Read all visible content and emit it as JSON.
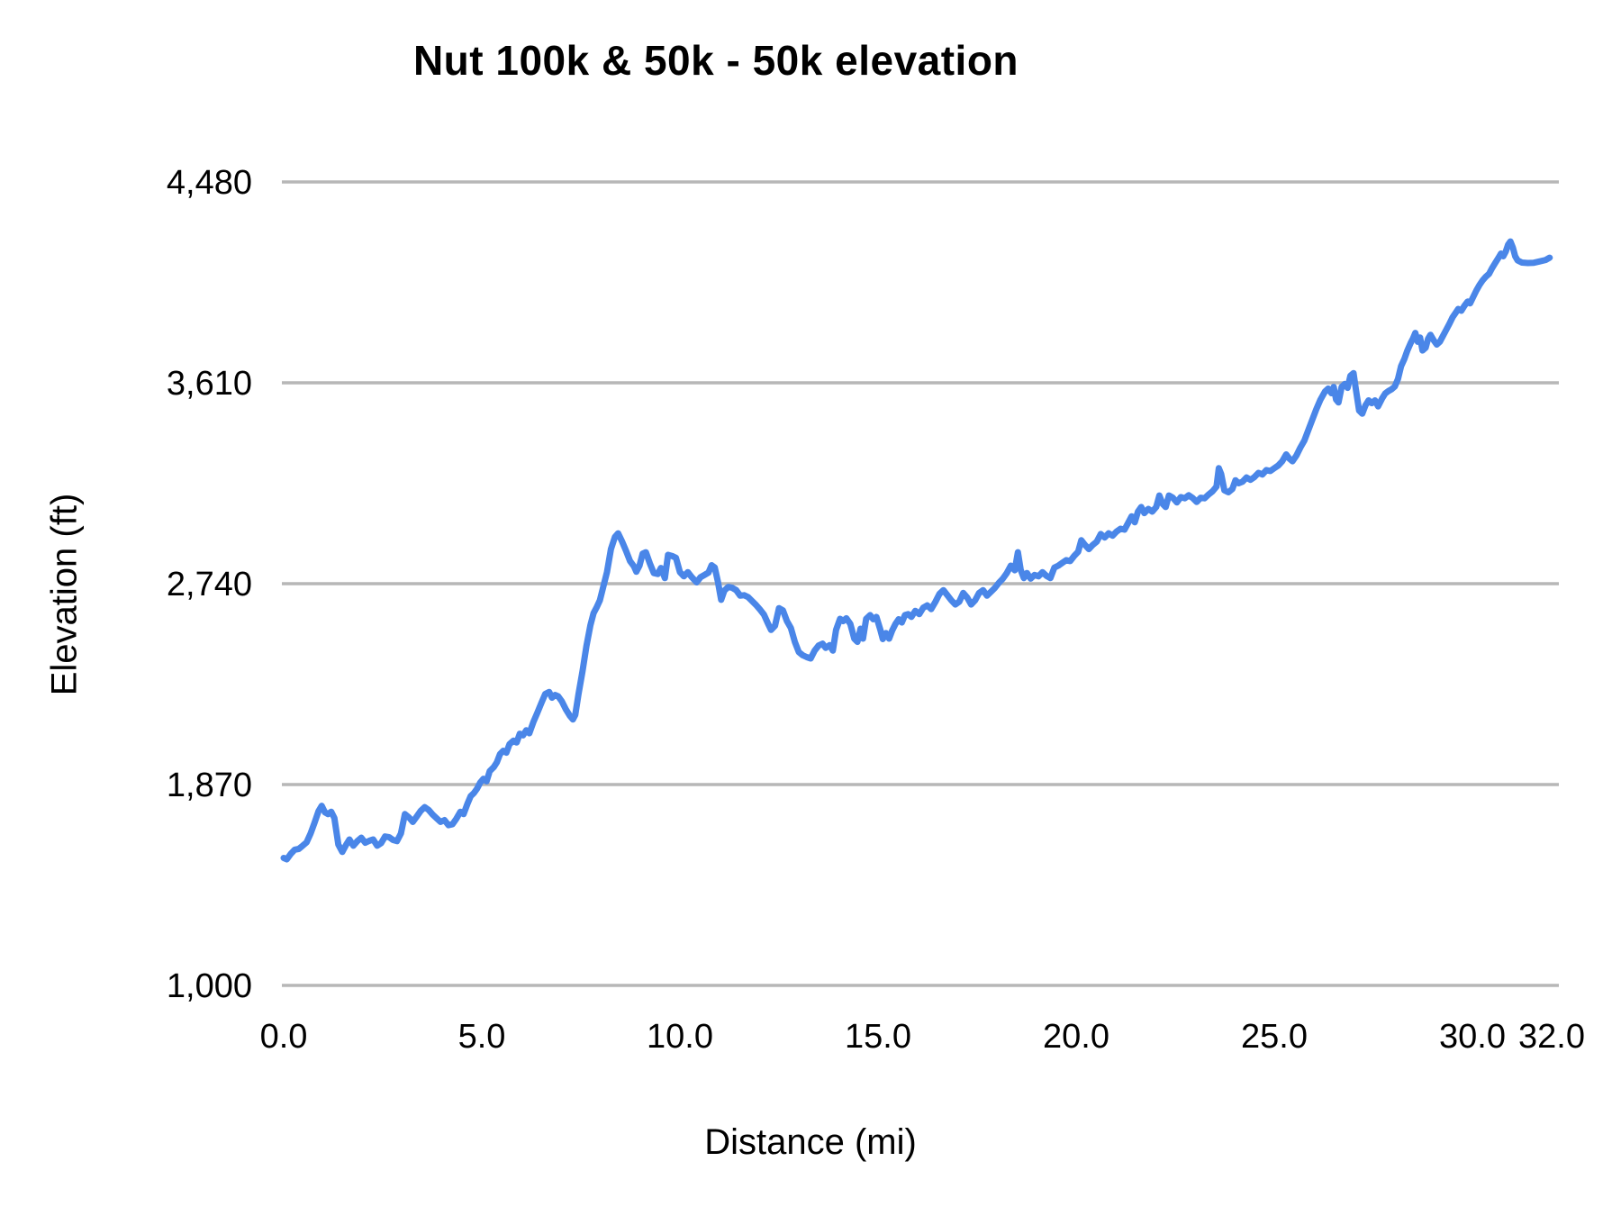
{
  "chart_data": {
    "type": "line",
    "title": "Nut 100k & 50k - 50k elevation",
    "xlabel": "Distance (mi)",
    "ylabel": "Elevation (ft)",
    "series_name": "50k elevation",
    "xlim": [
      0,
      32
    ],
    "ylim": [
      1000,
      4480
    ],
    "grid": "horizontal",
    "legend": "none",
    "line_color": "#4a86e8",
    "gridline_color": "#b7b7b7",
    "text_color": "#000000",
    "background_color": "#ffffff",
    "x_ticks": [
      {
        "v": 0,
        "label": "0.0"
      },
      {
        "v": 5,
        "label": "5.0"
      },
      {
        "v": 10,
        "label": "10.0"
      },
      {
        "v": 15,
        "label": "15.0"
      },
      {
        "v": 20,
        "label": "20.0"
      },
      {
        "v": 25,
        "label": "25.0"
      },
      {
        "v": 30,
        "label": "30.0"
      },
      {
        "v": 32,
        "label": "32.0"
      }
    ],
    "y_ticks": [
      {
        "v": 1000,
        "label": "1,000"
      },
      {
        "v": 1870,
        "label": "1,870"
      },
      {
        "v": 2740,
        "label": "2,740"
      },
      {
        "v": 3610,
        "label": "3,610"
      },
      {
        "v": 4480,
        "label": "4,480"
      }
    ],
    "points": [
      [
        0.0,
        1552
      ],
      [
        0.08,
        1546
      ],
      [
        0.18,
        1570
      ],
      [
        0.28,
        1588
      ],
      [
        0.38,
        1591
      ],
      [
        0.48,
        1605
      ],
      [
        0.58,
        1620
      ],
      [
        0.68,
        1658
      ],
      [
        0.78,
        1705
      ],
      [
        0.88,
        1755
      ],
      [
        0.96,
        1778
      ],
      [
        1.04,
        1750
      ],
      [
        1.12,
        1742
      ],
      [
        1.2,
        1752
      ],
      [
        1.28,
        1725
      ],
      [
        1.38,
        1610
      ],
      [
        1.48,
        1578
      ],
      [
        1.58,
        1610
      ],
      [
        1.66,
        1632
      ],
      [
        1.76,
        1605
      ],
      [
        1.86,
        1625
      ],
      [
        1.96,
        1640
      ],
      [
        2.06,
        1618
      ],
      [
        2.16,
        1626
      ],
      [
        2.26,
        1632
      ],
      [
        2.36,
        1605
      ],
      [
        2.46,
        1616
      ],
      [
        2.56,
        1645
      ],
      [
        2.66,
        1642
      ],
      [
        2.76,
        1630
      ],
      [
        2.86,
        1625
      ],
      [
        2.96,
        1658
      ],
      [
        3.06,
        1742
      ],
      [
        3.16,
        1728
      ],
      [
        3.26,
        1708
      ],
      [
        3.36,
        1732
      ],
      [
        3.46,
        1756
      ],
      [
        3.56,
        1772
      ],
      [
        3.66,
        1760
      ],
      [
        3.76,
        1740
      ],
      [
        3.86,
        1724
      ],
      [
        3.96,
        1708
      ],
      [
        4.06,
        1716
      ],
      [
        4.16,
        1694
      ],
      [
        4.26,
        1698
      ],
      [
        4.36,
        1722
      ],
      [
        4.46,
        1752
      ],
      [
        4.54,
        1742
      ],
      [
        4.64,
        1788
      ],
      [
        4.72,
        1820
      ],
      [
        4.8,
        1833
      ],
      [
        4.88,
        1852
      ],
      [
        4.96,
        1878
      ],
      [
        5.04,
        1895
      ],
      [
        5.12,
        1884
      ],
      [
        5.2,
        1928
      ],
      [
        5.3,
        1945
      ],
      [
        5.38,
        1966
      ],
      [
        5.46,
        2002
      ],
      [
        5.54,
        2016
      ],
      [
        5.62,
        2008
      ],
      [
        5.7,
        2045
      ],
      [
        5.8,
        2060
      ],
      [
        5.88,
        2052
      ],
      [
        5.96,
        2090
      ],
      [
        6.04,
        2083
      ],
      [
        6.12,
        2105
      ],
      [
        6.2,
        2092
      ],
      [
        6.3,
        2140
      ],
      [
        6.4,
        2180
      ],
      [
        6.5,
        2222
      ],
      [
        6.6,
        2262
      ],
      [
        6.7,
        2271
      ],
      [
        6.77,
        2246
      ],
      [
        6.85,
        2258
      ],
      [
        6.93,
        2252
      ],
      [
        7.02,
        2230
      ],
      [
        7.12,
        2196
      ],
      [
        7.22,
        2168
      ],
      [
        7.3,
        2152
      ],
      [
        7.36,
        2172
      ],
      [
        7.44,
        2262
      ],
      [
        7.54,
        2360
      ],
      [
        7.64,
        2470
      ],
      [
        7.74,
        2560
      ],
      [
        7.82,
        2612
      ],
      [
        7.9,
        2638
      ],
      [
        7.98,
        2668
      ],
      [
        8.06,
        2722
      ],
      [
        8.16,
        2790
      ],
      [
        8.26,
        2890
      ],
      [
        8.36,
        2942
      ],
      [
        8.44,
        2958
      ],
      [
        8.54,
        2922
      ],
      [
        8.64,
        2882
      ],
      [
        8.74,
        2838
      ],
      [
        8.84,
        2815
      ],
      [
        8.9,
        2792
      ],
      [
        8.98,
        2818
      ],
      [
        9.06,
        2870
      ],
      [
        9.14,
        2876
      ],
      [
        9.24,
        2828
      ],
      [
        9.34,
        2786
      ],
      [
        9.44,
        2782
      ],
      [
        9.52,
        2808
      ],
      [
        9.62,
        2764
      ],
      [
        9.7,
        2865
      ],
      [
        9.8,
        2860
      ],
      [
        9.9,
        2852
      ],
      [
        10.0,
        2790
      ],
      [
        10.1,
        2772
      ],
      [
        10.2,
        2790
      ],
      [
        10.3,
        2768
      ],
      [
        10.42,
        2746
      ],
      [
        10.52,
        2768
      ],
      [
        10.62,
        2778
      ],
      [
        10.72,
        2788
      ],
      [
        10.8,
        2820
      ],
      [
        10.88,
        2810
      ],
      [
        10.96,
        2748
      ],
      [
        11.04,
        2670
      ],
      [
        11.12,
        2710
      ],
      [
        11.22,
        2726
      ],
      [
        11.32,
        2722
      ],
      [
        11.42,
        2712
      ],
      [
        11.52,
        2688
      ],
      [
        11.62,
        2690
      ],
      [
        11.72,
        2682
      ],
      [
        11.82,
        2665
      ],
      [
        11.92,
        2648
      ],
      [
        12.02,
        2628
      ],
      [
        12.12,
        2606
      ],
      [
        12.22,
        2568
      ],
      [
        12.3,
        2540
      ],
      [
        12.4,
        2558
      ],
      [
        12.5,
        2634
      ],
      [
        12.6,
        2624
      ],
      [
        12.7,
        2578
      ],
      [
        12.8,
        2548
      ],
      [
        12.9,
        2488
      ],
      [
        13.0,
        2444
      ],
      [
        13.1,
        2430
      ],
      [
        13.2,
        2422
      ],
      [
        13.3,
        2416
      ],
      [
        13.4,
        2450
      ],
      [
        13.5,
        2472
      ],
      [
        13.6,
        2480
      ],
      [
        13.68,
        2462
      ],
      [
        13.78,
        2474
      ],
      [
        13.86,
        2450
      ],
      [
        13.94,
        2540
      ],
      [
        14.04,
        2588
      ],
      [
        14.12,
        2578
      ],
      [
        14.2,
        2590
      ],
      [
        14.3,
        2566
      ],
      [
        14.4,
        2502
      ],
      [
        14.48,
        2488
      ],
      [
        14.56,
        2545
      ],
      [
        14.62,
        2502
      ],
      [
        14.7,
        2588
      ],
      [
        14.8,
        2604
      ],
      [
        14.88,
        2586
      ],
      [
        14.96,
        2596
      ],
      [
        15.06,
        2540
      ],
      [
        15.12,
        2500
      ],
      [
        15.2,
        2526
      ],
      [
        15.28,
        2502
      ],
      [
        15.36,
        2538
      ],
      [
        15.44,
        2566
      ],
      [
        15.52,
        2586
      ],
      [
        15.6,
        2572
      ],
      [
        15.68,
        2604
      ],
      [
        15.76,
        2608
      ],
      [
        15.84,
        2596
      ],
      [
        15.94,
        2622
      ],
      [
        16.04,
        2608
      ],
      [
        16.14,
        2636
      ],
      [
        16.24,
        2646
      ],
      [
        16.34,
        2630
      ],
      [
        16.45,
        2662
      ],
      [
        16.55,
        2696
      ],
      [
        16.65,
        2712
      ],
      [
        16.75,
        2690
      ],
      [
        16.85,
        2668
      ],
      [
        16.95,
        2650
      ],
      [
        17.05,
        2662
      ],
      [
        17.15,
        2700
      ],
      [
        17.25,
        2680
      ],
      [
        17.35,
        2650
      ],
      [
        17.45,
        2668
      ],
      [
        17.55,
        2700
      ],
      [
        17.65,
        2712
      ],
      [
        17.75,
        2688
      ],
      [
        17.85,
        2705
      ],
      [
        17.95,
        2722
      ],
      [
        18.05,
        2744
      ],
      [
        18.15,
        2762
      ],
      [
        18.25,
        2786
      ],
      [
        18.35,
        2818
      ],
      [
        18.45,
        2798
      ],
      [
        18.53,
        2876
      ],
      [
        18.6,
        2800
      ],
      [
        18.68,
        2764
      ],
      [
        18.76,
        2786
      ],
      [
        18.85,
        2762
      ],
      [
        18.95,
        2778
      ],
      [
        19.05,
        2772
      ],
      [
        19.15,
        2790
      ],
      [
        19.25,
        2774
      ],
      [
        19.35,
        2764
      ],
      [
        19.45,
        2810
      ],
      [
        19.55,
        2818
      ],
      [
        19.65,
        2830
      ],
      [
        19.75,
        2842
      ],
      [
        19.85,
        2838
      ],
      [
        19.95,
        2860
      ],
      [
        20.05,
        2878
      ],
      [
        20.13,
        2928
      ],
      [
        20.22,
        2908
      ],
      [
        20.32,
        2890
      ],
      [
        20.42,
        2908
      ],
      [
        20.52,
        2922
      ],
      [
        20.62,
        2955
      ],
      [
        20.72,
        2940
      ],
      [
        20.82,
        2958
      ],
      [
        20.92,
        2948
      ],
      [
        21.02,
        2966
      ],
      [
        21.12,
        2978
      ],
      [
        21.22,
        2974
      ],
      [
        21.32,
        3006
      ],
      [
        21.4,
        3032
      ],
      [
        21.48,
        3006
      ],
      [
        21.56,
        3052
      ],
      [
        21.64,
        3072
      ],
      [
        21.72,
        3046
      ],
      [
        21.82,
        3064
      ],
      [
        21.92,
        3052
      ],
      [
        22.02,
        3072
      ],
      [
        22.1,
        3122
      ],
      [
        22.18,
        3086
      ],
      [
        22.26,
        3072
      ],
      [
        22.34,
        3122
      ],
      [
        22.44,
        3112
      ],
      [
        22.54,
        3092
      ],
      [
        22.64,
        3115
      ],
      [
        22.74,
        3110
      ],
      [
        22.84,
        3123
      ],
      [
        22.94,
        3111
      ],
      [
        23.04,
        3094
      ],
      [
        23.14,
        3112
      ],
      [
        23.24,
        3110
      ],
      [
        23.34,
        3126
      ],
      [
        23.44,
        3140
      ],
      [
        23.54,
        3160
      ],
      [
        23.6,
        3240
      ],
      [
        23.66,
        3215
      ],
      [
        23.74,
        3144
      ],
      [
        23.84,
        3136
      ],
      [
        23.94,
        3150
      ],
      [
        24.02,
        3188
      ],
      [
        24.1,
        3175
      ],
      [
        24.2,
        3182
      ],
      [
        24.3,
        3200
      ],
      [
        24.4,
        3190
      ],
      [
        24.5,
        3202
      ],
      [
        24.6,
        3220
      ],
      [
        24.7,
        3213
      ],
      [
        24.8,
        3232
      ],
      [
        24.9,
        3228
      ],
      [
        25.0,
        3240
      ],
      [
        25.1,
        3252
      ],
      [
        25.2,
        3270
      ],
      [
        25.3,
        3300
      ],
      [
        25.38,
        3282
      ],
      [
        25.46,
        3270
      ],
      [
        25.56,
        3295
      ],
      [
        25.66,
        3330
      ],
      [
        25.76,
        3360
      ],
      [
        25.86,
        3405
      ],
      [
        25.96,
        3450
      ],
      [
        26.06,
        3495
      ],
      [
        26.16,
        3535
      ],
      [
        26.28,
        3572
      ],
      [
        26.36,
        3585
      ],
      [
        26.44,
        3565
      ],
      [
        26.5,
        3592
      ],
      [
        26.56,
        3538
      ],
      [
        26.62,
        3525
      ],
      [
        26.7,
        3592
      ],
      [
        26.78,
        3605
      ],
      [
        26.85,
        3588
      ],
      [
        26.92,
        3640
      ],
      [
        27.0,
        3652
      ],
      [
        27.06,
        3582
      ],
      [
        27.14,
        3490
      ],
      [
        27.22,
        3476
      ],
      [
        27.3,
        3512
      ],
      [
        27.38,
        3534
      ],
      [
        27.46,
        3522
      ],
      [
        27.54,
        3534
      ],
      [
        27.62,
        3508
      ],
      [
        27.72,
        3542
      ],
      [
        27.8,
        3564
      ],
      [
        27.88,
        3574
      ],
      [
        27.96,
        3582
      ],
      [
        28.04,
        3594
      ],
      [
        28.12,
        3626
      ],
      [
        28.2,
        3682
      ],
      [
        28.28,
        3712
      ],
      [
        28.36,
        3750
      ],
      [
        28.44,
        3782
      ],
      [
        28.5,
        3802
      ],
      [
        28.56,
        3826
      ],
      [
        28.62,
        3788
      ],
      [
        28.68,
        3806
      ],
      [
        28.74,
        3750
      ],
      [
        28.82,
        3762
      ],
      [
        28.88,
        3800
      ],
      [
        28.94,
        3818
      ],
      [
        29.02,
        3795
      ],
      [
        29.1,
        3776
      ],
      [
        29.18,
        3788
      ],
      [
        29.26,
        3814
      ],
      [
        29.34,
        3840
      ],
      [
        29.42,
        3866
      ],
      [
        29.5,
        3894
      ],
      [
        29.58,
        3914
      ],
      [
        29.64,
        3930
      ],
      [
        29.72,
        3922
      ],
      [
        29.8,
        3944
      ],
      [
        29.88,
        3962
      ],
      [
        29.94,
        3954
      ],
      [
        30.02,
        3982
      ],
      [
        30.1,
        4010
      ],
      [
        30.18,
        4034
      ],
      [
        30.26,
        4054
      ],
      [
        30.34,
        4070
      ],
      [
        30.42,
        4082
      ],
      [
        30.5,
        4108
      ],
      [
        30.58,
        4130
      ],
      [
        30.66,
        4152
      ],
      [
        30.72,
        4170
      ],
      [
        30.78,
        4158
      ],
      [
        30.84,
        4178
      ],
      [
        30.9,
        4208
      ],
      [
        30.96,
        4222
      ],
      [
        31.02,
        4196
      ],
      [
        31.08,
        4158
      ],
      [
        31.14,
        4140
      ],
      [
        31.25,
        4131
      ],
      [
        31.4,
        4129
      ],
      [
        31.55,
        4130
      ],
      [
        31.7,
        4136
      ],
      [
        31.85,
        4142
      ],
      [
        31.95,
        4152
      ]
    ]
  }
}
